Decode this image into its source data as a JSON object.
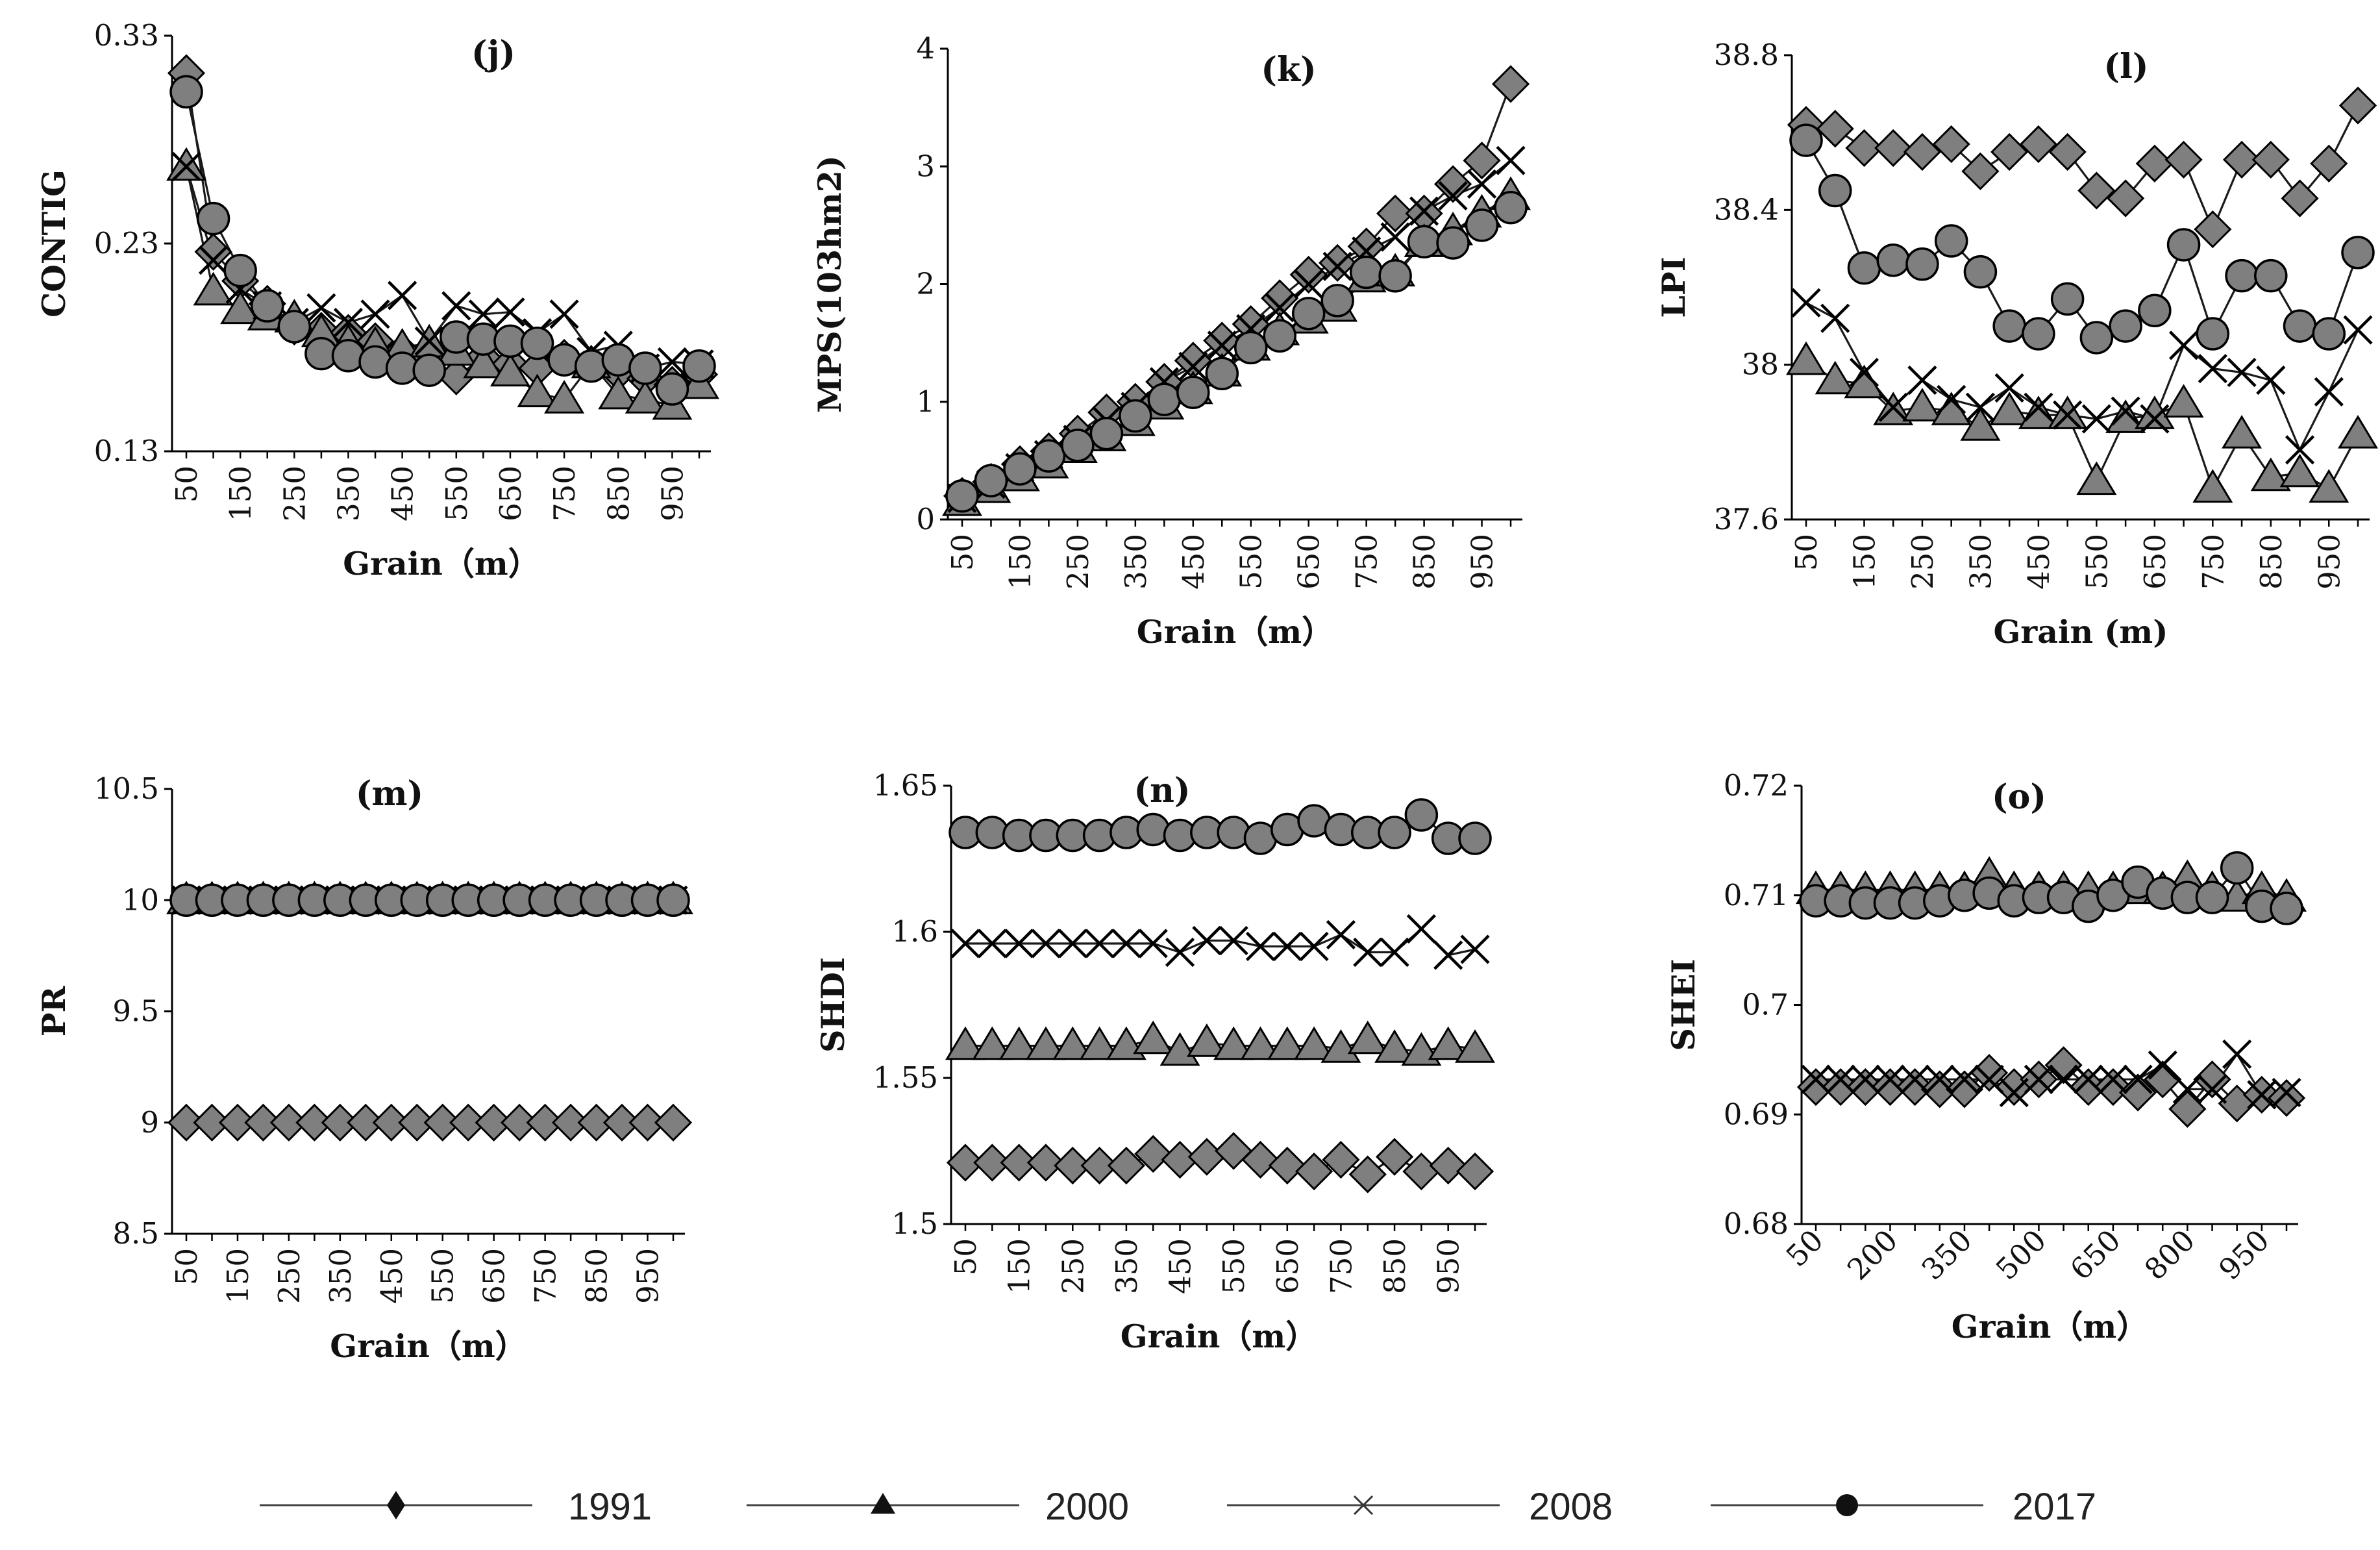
{
  "colors": {
    "marker_fill": "#7f7f7f",
    "stroke": "#000000",
    "line": "#1a1a1a"
  },
  "legend": [
    {
      "name": "1991",
      "marker": "diamond"
    },
    {
      "name": "2000",
      "marker": "triangle"
    },
    {
      "name": "2008",
      "marker": "cross"
    },
    {
      "name": "2017",
      "marker": "circle"
    }
  ],
  "chart_data": [
    {
      "id": "j",
      "type": "line",
      "title": "(j)",
      "xlabel": "Grain（m）",
      "ylabel": "CONTIG",
      "x": [
        50,
        100,
        150,
        200,
        250,
        300,
        350,
        400,
        450,
        500,
        550,
        600,
        650,
        700,
        750,
        800,
        850,
        900,
        950,
        1000
      ],
      "xticks": [
        "50",
        "150",
        "250",
        "350",
        "450",
        "550",
        "650",
        "750",
        "850",
        "950"
      ],
      "ylim": [
        0.13,
        0.33
      ],
      "yticks": [
        "0.13",
        "0.23",
        "0.33"
      ],
      "ytick_values": [
        0.13,
        0.23,
        0.33
      ],
      "tick_rotation": -90,
      "series": [
        {
          "name": "1991",
          "values": [
            0.312,
            0.226,
            0.212,
            0.201,
            0.19,
            0.188,
            0.187,
            0.183,
            0.178,
            0.176,
            0.166,
            0.175,
            0.172,
            0.17,
            0.175,
            0.172,
            0.168,
            0.165,
            0.162,
            0.167
          ]
        },
        {
          "name": "2000",
          "values": [
            0.267,
            0.207,
            0.198,
            0.195,
            0.194,
            0.187,
            0.182,
            0.181,
            0.18,
            0.182,
            0.178,
            0.172,
            0.168,
            0.158,
            0.155,
            0.172,
            0.157,
            0.155,
            0.152,
            0.162
          ]
        },
        {
          "name": "2008",
          "values": [
            0.267,
            0.222,
            0.208,
            0.2,
            0.192,
            0.199,
            0.192,
            0.196,
            0.205,
            0.183,
            0.2,
            0.196,
            0.197,
            0.187,
            0.196,
            0.178,
            0.181,
            0.17,
            0.173,
            0.172
          ]
        },
        {
          "name": "2017",
          "values": [
            0.303,
            0.242,
            0.217,
            0.2,
            0.19,
            0.177,
            0.176,
            0.173,
            0.17,
            0.169,
            0.185,
            0.184,
            0.183,
            0.182,
            0.174,
            0.171,
            0.174,
            0.17,
            0.16,
            0.171
          ]
        }
      ]
    },
    {
      "id": "k",
      "type": "line",
      "title": "(k)",
      "xlabel": "Grain（m）",
      "ylabel": "MPS(103hm2)",
      "x": [
        50,
        100,
        150,
        200,
        250,
        300,
        350,
        400,
        450,
        500,
        550,
        600,
        650,
        700,
        750,
        800,
        850,
        900,
        950,
        1000
      ],
      "xticks": [
        "50",
        "150",
        "250",
        "350",
        "450",
        "550",
        "650",
        "750",
        "850",
        "950"
      ],
      "ylim": [
        0,
        4
      ],
      "yticks": [
        "0",
        "1",
        "2",
        "3",
        "4"
      ],
      "ytick_values": [
        0,
        1,
        2,
        3,
        4
      ],
      "tick_rotation": -90,
      "series": [
        {
          "name": "1991",
          "values": [
            0.2,
            0.32,
            0.47,
            0.58,
            0.73,
            0.91,
            1.0,
            1.17,
            1.35,
            1.52,
            1.66,
            1.88,
            2.08,
            2.18,
            2.32,
            2.6,
            2.6,
            2.85,
            3.05,
            3.7
          ]
        },
        {
          "name": "2000",
          "values": [
            0.15,
            0.26,
            0.36,
            0.47,
            0.6,
            0.7,
            0.83,
            0.97,
            1.1,
            1.25,
            1.47,
            1.6,
            1.7,
            1.8,
            2.05,
            2.1,
            2.35,
            2.45,
            2.6,
            2.75
          ]
        },
        {
          "name": "2008",
          "values": [
            0.18,
            0.3,
            0.44,
            0.55,
            0.68,
            0.84,
            0.96,
            1.17,
            1.3,
            1.48,
            1.62,
            1.8,
            2.0,
            2.15,
            2.28,
            2.4,
            2.62,
            2.75,
            2.85,
            3.05
          ]
        },
        {
          "name": "2017",
          "values": [
            0.2,
            0.33,
            0.43,
            0.54,
            0.63,
            0.73,
            0.88,
            1.02,
            1.08,
            1.24,
            1.46,
            1.56,
            1.75,
            1.86,
            2.1,
            2.07,
            2.36,
            2.35,
            2.5,
            2.65
          ]
        }
      ]
    },
    {
      "id": "l",
      "type": "line",
      "title": "(l)",
      "xlabel": "Grain (m)",
      "ylabel": "LPI",
      "x": [
        50,
        100,
        150,
        200,
        250,
        300,
        350,
        400,
        450,
        500,
        550,
        600,
        650,
        700,
        750,
        800,
        850,
        900,
        950,
        1000
      ],
      "xticks": [
        "50",
        "150",
        "250",
        "350",
        "450",
        "550",
        "650",
        "750",
        "850",
        "950"
      ],
      "ylim": [
        37.6,
        38.8
      ],
      "yticks": [
        "37.6",
        "38",
        "38.4",
        "38.8"
      ],
      "ytick_values": [
        37.6,
        38,
        38.4,
        38.8
      ],
      "tick_rotation": -90,
      "series": [
        {
          "name": "1991",
          "values": [
            38.62,
            38.61,
            38.56,
            38.56,
            38.55,
            38.57,
            38.5,
            38.55,
            38.57,
            38.55,
            38.45,
            38.43,
            38.52,
            38.53,
            38.35,
            38.53,
            38.53,
            38.43,
            38.52,
            38.67
          ]
        },
        {
          "name": "2000",
          "values": [
            38.01,
            37.96,
            37.95,
            37.88,
            37.89,
            37.88,
            37.84,
            37.88,
            37.87,
            37.87,
            37.7,
            37.86,
            37.87,
            37.9,
            37.68,
            37.82,
            37.71,
            37.72,
            37.68,
            37.82
          ]
        },
        {
          "name": "2008",
          "values": [
            38.16,
            38.12,
            37.98,
            37.89,
            37.96,
            37.91,
            37.89,
            37.94,
            37.89,
            37.87,
            37.86,
            37.88,
            37.86,
            38.05,
            37.99,
            37.98,
            37.96,
            37.78,
            37.93,
            38.09
          ]
        },
        {
          "name": "2017",
          "values": [
            38.58,
            38.45,
            38.25,
            38.27,
            38.26,
            38.32,
            38.24,
            38.1,
            38.08,
            38.17,
            38.07,
            38.1,
            38.14,
            38.31,
            38.08,
            38.23,
            38.23,
            38.1,
            38.08,
            38.29
          ]
        }
      ]
    },
    {
      "id": "m",
      "type": "line",
      "title": "(m)",
      "xlabel": "Grain（m）",
      "ylabel": "PR",
      "x": [
        50,
        100,
        150,
        200,
        250,
        300,
        350,
        400,
        450,
        500,
        550,
        600,
        650,
        700,
        750,
        800,
        850,
        900,
        950,
        1000
      ],
      "xticks": [
        "50",
        "150",
        "250",
        "350",
        "450",
        "550",
        "650",
        "750",
        "850",
        "950"
      ],
      "ylim": [
        8.5,
        10.5
      ],
      "yticks": [
        "8.5",
        "9",
        "9.5",
        "10",
        "10.5"
      ],
      "ytick_values": [
        8.5,
        9,
        9.5,
        10,
        10.5
      ],
      "tick_rotation": -90,
      "series": [
        {
          "name": "1991",
          "values": [
            9,
            9,
            9,
            9,
            9,
            9,
            9,
            9,
            9,
            9,
            9,
            9,
            9,
            9,
            9,
            9,
            9,
            9,
            9,
            9
          ]
        },
        {
          "name": "2000",
          "values": [
            10,
            10,
            10,
            10,
            10,
            10,
            10,
            10,
            10,
            10,
            10,
            10,
            10,
            10,
            10,
            10,
            10,
            10,
            10,
            10
          ]
        },
        {
          "name": "2008",
          "values": [
            10,
            10,
            10,
            10,
            10,
            10,
            10,
            10,
            10,
            10,
            10,
            10,
            10,
            10,
            10,
            10,
            10,
            10,
            10,
            10
          ]
        },
        {
          "name": "2017",
          "values": [
            10,
            10,
            10,
            10,
            10,
            10,
            10,
            10,
            10,
            10,
            10,
            10,
            10,
            10,
            10,
            10,
            10,
            10,
            10,
            10
          ]
        }
      ]
    },
    {
      "id": "n",
      "type": "line",
      "title": "(n)",
      "xlabel": "Grain（m）",
      "ylabel": "SHDI",
      "x": [
        50,
        100,
        150,
        200,
        250,
        300,
        350,
        400,
        450,
        500,
        550,
        600,
        650,
        700,
        750,
        800,
        850,
        900,
        950,
        1000
      ],
      "xticks": [
        "50",
        "150",
        "250",
        "350",
        "450",
        "550",
        "650",
        "750",
        "850",
        "950"
      ],
      "ylim": [
        1.5,
        1.65
      ],
      "yticks": [
        "1.5",
        "1.55",
        "1.6",
        "1.65"
      ],
      "ytick_values": [
        1.5,
        1.55,
        1.6,
        1.65
      ],
      "tick_rotation": -90,
      "series": [
        {
          "name": "1991",
          "values": [
            1.521,
            1.521,
            1.521,
            1.521,
            1.52,
            1.52,
            1.52,
            1.524,
            1.522,
            1.523,
            1.525,
            1.522,
            1.52,
            1.518,
            1.522,
            1.517,
            1.523,
            1.518,
            1.52,
            1.518
          ]
        },
        {
          "name": "2000",
          "values": [
            1.561,
            1.561,
            1.561,
            1.561,
            1.561,
            1.561,
            1.561,
            1.563,
            1.559,
            1.562,
            1.561,
            1.561,
            1.561,
            1.561,
            1.56,
            1.563,
            1.56,
            1.559,
            1.561,
            1.56
          ]
        },
        {
          "name": "2008",
          "values": [
            1.596,
            1.596,
            1.596,
            1.596,
            1.596,
            1.596,
            1.596,
            1.596,
            1.593,
            1.597,
            1.597,
            1.595,
            1.595,
            1.595,
            1.599,
            1.593,
            1.593,
            1.601,
            1.592,
            1.594
          ]
        },
        {
          "name": "2017",
          "values": [
            1.634,
            1.634,
            1.633,
            1.633,
            1.633,
            1.633,
            1.634,
            1.635,
            1.633,
            1.634,
            1.634,
            1.632,
            1.635,
            1.638,
            1.635,
            1.634,
            1.634,
            1.64,
            1.632,
            1.632
          ]
        }
      ]
    },
    {
      "id": "o",
      "type": "line",
      "title": "(o)",
      "xlabel": "Grain（m）",
      "ylabel": "SHEI",
      "x": [
        50,
        100,
        150,
        200,
        250,
        300,
        350,
        400,
        450,
        500,
        550,
        600,
        650,
        700,
        750,
        800,
        850,
        900,
        950,
        1000
      ],
      "xticks": [
        "50",
        "200",
        "350",
        "500",
        "650",
        "800",
        "950"
      ],
      "ylim": [
        0.68,
        0.72
      ],
      "yticks": [
        "0.68",
        "0.69",
        "0.7",
        "0.71",
        "0.72"
      ],
      "ytick_values": [
        0.68,
        0.69,
        0.7,
        0.71,
        0.72
      ],
      "tick_rotation": -45,
      "series": [
        {
          "name": "1991",
          "values": [
            0.6925,
            0.6925,
            0.6925,
            0.6925,
            0.6925,
            0.6923,
            0.6923,
            0.6938,
            0.6925,
            0.6932,
            0.6945,
            0.6925,
            0.6925,
            0.692,
            0.6932,
            0.6905,
            0.6932,
            0.691,
            0.6918,
            0.6915
          ]
        },
        {
          "name": "2000",
          "values": [
            0.7105,
            0.7105,
            0.7105,
            0.7105,
            0.7105,
            0.7105,
            0.7105,
            0.7118,
            0.7105,
            0.7105,
            0.7105,
            0.7105,
            0.7105,
            0.7105,
            0.7105,
            0.7115,
            0.7105,
            0.7098,
            0.7105,
            0.7098
          ]
        },
        {
          "name": "2008",
          "values": [
            0.6932,
            0.6932,
            0.6932,
            0.6932,
            0.6932,
            0.6932,
            0.6932,
            0.6932,
            0.692,
            0.6932,
            0.6932,
            0.6932,
            0.6932,
            0.6932,
            0.6945,
            0.6923,
            0.6923,
            0.6955,
            0.6918,
            0.692
          ]
        },
        {
          "name": "2017",
          "values": [
            0.7095,
            0.7095,
            0.7093,
            0.7093,
            0.7093,
            0.7095,
            0.71,
            0.7102,
            0.7095,
            0.7098,
            0.7098,
            0.709,
            0.71,
            0.7112,
            0.7102,
            0.7098,
            0.7098,
            0.7125,
            0.709,
            0.7088
          ]
        }
      ]
    }
  ]
}
